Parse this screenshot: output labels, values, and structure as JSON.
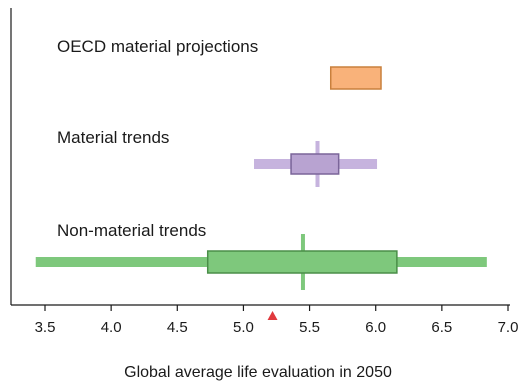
{
  "chart_data": {
    "type": "boxplot",
    "xlabel": "Global average life evaluation in 2050",
    "xlim": [
      3.25,
      7.0
    ],
    "xticks": [
      "3.5",
      "4.0",
      "4.5",
      "5.0",
      "5.5",
      "6.0",
      "6.5",
      "7.0"
    ],
    "xtick_values": [
      3.5,
      4.0,
      4.5,
      5.0,
      5.5,
      6.0,
      6.5,
      7.0
    ],
    "grid": false,
    "marker": {
      "x": 5.22,
      "color": "#e0393e",
      "shape": "triangle"
    },
    "series": [
      {
        "name": "OECD material projections",
        "whisker_low": null,
        "box_low": 5.66,
        "median": null,
        "box_high": 6.04,
        "whisker_high": null,
        "fill": "#f9b27a",
        "stroke": "#c9803d",
        "whisker_color": null
      },
      {
        "name": "Material trends",
        "whisker_low": 5.08,
        "box_low": 5.36,
        "median": 5.56,
        "box_high": 5.72,
        "whisker_high": 6.01,
        "fill": "#b8a3d1",
        "stroke": "#7a6599",
        "whisker_color": "#c6b3de"
      },
      {
        "name": "Non-material trends",
        "whisker_low": 3.43,
        "box_low": 4.73,
        "median": 5.45,
        "box_high": 6.16,
        "whisker_high": 6.84,
        "fill": "#7ec87c",
        "stroke": "#4a8e48",
        "whisker_color": "#7ec87c"
      }
    ]
  }
}
